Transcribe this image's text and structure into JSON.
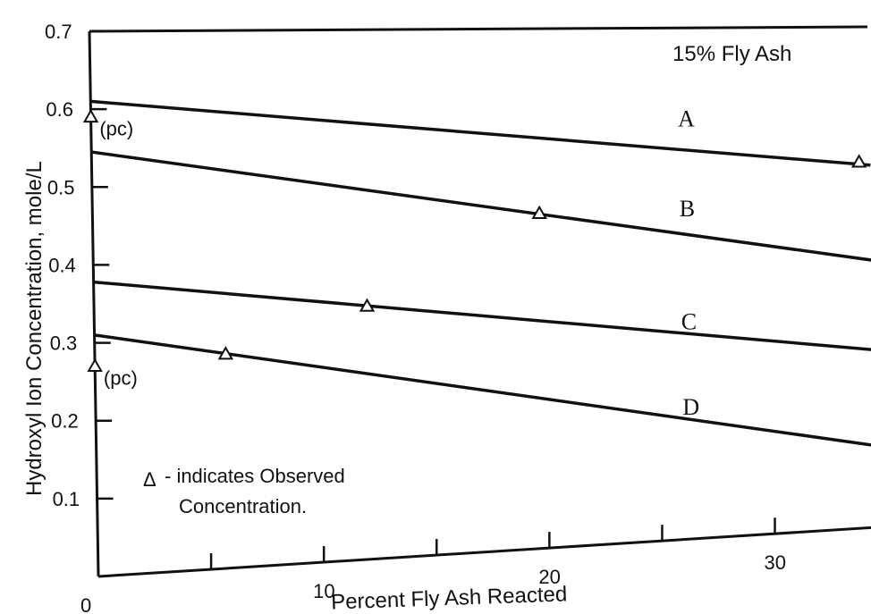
{
  "chart_data": {
    "type": "line",
    "title": "15% Fly Ash",
    "xlabel": "Percent Fly Ash Reacted",
    "ylabel": "Hydroxyl Ion Concentration, mole/L",
    "xlim": [
      0,
      34.5
    ],
    "ylim": [
      0,
      0.7
    ],
    "x_ticks": [
      0,
      10,
      20,
      30
    ],
    "x_minor_ticks": [
      5,
      15,
      25
    ],
    "y_ticks": [
      0.1,
      0.2,
      0.3,
      0.4,
      0.5,
      0.6,
      0.7
    ],
    "y_tick_labels": [
      "0.1",
      "0.2",
      "0.3",
      "0.4",
      "0.5",
      "0.6",
      "0.7"
    ],
    "x_tick_labels": [
      "0",
      "10",
      "20",
      "30"
    ],
    "grid": false,
    "series": [
      {
        "name": "A",
        "x": [
          0,
          34.5
        ],
        "y": [
          0.61,
          0.465
        ]
      },
      {
        "name": "B",
        "x": [
          0,
          34.5
        ],
        "y": [
          0.545,
          0.343
        ]
      },
      {
        "name": "C",
        "x": [
          0,
          34.5
        ],
        "y": [
          0.378,
          0.228
        ]
      },
      {
        "name": "D",
        "x": [
          0,
          34.5
        ],
        "y": [
          0.31,
          0.105
        ]
      }
    ],
    "series_label_positions": [
      {
        "name": "A",
        "x": 26,
        "y": 0.53
      },
      {
        "name": "B",
        "x": 26,
        "y": 0.415
      },
      {
        "name": "C",
        "x": 26,
        "y": 0.27
      },
      {
        "name": "D",
        "x": 26,
        "y": 0.16
      }
    ],
    "observed_points": [
      {
        "x": 0,
        "y": 0.59
      },
      {
        "x": 0,
        "y": 0.27
      },
      {
        "x": 5.8,
        "y": 0.275
      },
      {
        "x": 12.1,
        "y": 0.325
      },
      {
        "x": 19.8,
        "y": 0.43
      },
      {
        "x": 34,
        "y": 0.47
      }
    ],
    "annotations": [
      {
        "text": "(pc)",
        "x": 0.3,
        "y": 0.575
      },
      {
        "text": "(pc)",
        "x": 0.3,
        "y": 0.255
      }
    ],
    "legend": {
      "marker": "Δ",
      "line1": "- indicates Observed",
      "line2": "Concentration.",
      "placement": "lower-left"
    }
  }
}
